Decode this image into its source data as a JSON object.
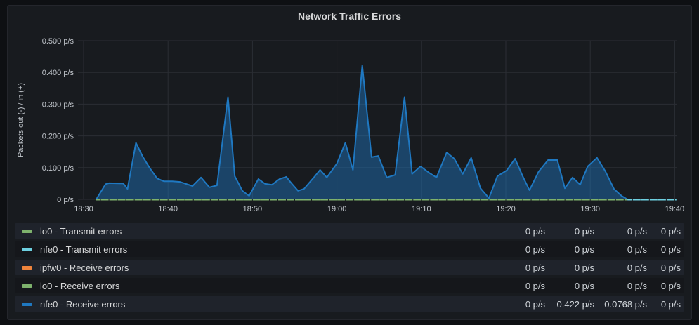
{
  "panel": {
    "title": "Network Traffic Errors"
  },
  "colors": {
    "page_bg": "#0e1013",
    "panel_bg": "#181b1f",
    "grid": "#2b2e34",
    "text": "#d8d9da",
    "tick_text": "#c0c5cb",
    "green": "#7EB26D",
    "cyan": "#6ED0E0",
    "orange": "#EF843C",
    "blue": "#1F78C1"
  },
  "chart_data": {
    "type": "area",
    "title": "Network Traffic Errors",
    "ylabel": "Packets out (-) / in (+)",
    "unit": "p/s",
    "ylim": [
      0,
      0.5
    ],
    "xlim_minutes": [
      0,
      70
    ],
    "grid": true,
    "legend_position": "bottom-table",
    "y_ticks": [
      {
        "label": "0.500 p/s",
        "value": 0.5
      },
      {
        "label": "0.400 p/s",
        "value": 0.4
      },
      {
        "label": "0.300 p/s",
        "value": 0.3
      },
      {
        "label": "0.200 p/s",
        "value": 0.2
      },
      {
        "label": "0.100 p/s",
        "value": 0.1
      },
      {
        "label": "0 p/s",
        "value": 0
      }
    ],
    "x_ticks": [
      {
        "label": "18:30",
        "minute": 0
      },
      {
        "label": "18:40",
        "minute": 10
      },
      {
        "label": "18:50",
        "minute": 20
      },
      {
        "label": "19:00",
        "minute": 30
      },
      {
        "label": "19:10",
        "minute": 40
      },
      {
        "label": "19:20",
        "minute": 50
      },
      {
        "label": "19:30",
        "minute": 60
      },
      {
        "label": "19:40",
        "minute": 70
      }
    ],
    "series": [
      {
        "name": "lo0 - Transmit errors",
        "color": "#7EB26D",
        "style": "line",
        "points": [
          [
            1.5,
            0
          ],
          [
            64.4,
            0
          ]
        ]
      },
      {
        "name": "nfe0 - Transmit errors",
        "color": "#6ED0E0",
        "style": "line",
        "points": [
          [
            64.4,
            0
          ],
          [
            70.2,
            0
          ]
        ]
      },
      {
        "name": "ipfw0 - Receive errors",
        "color": "#EF843C",
        "style": "line",
        "points": []
      },
      {
        "name": "lo0 - Receive errors",
        "color": "#7EB26D",
        "style": "line",
        "points": []
      },
      {
        "name": "nfe0 - Receive errors",
        "color": "#1F78C1",
        "style": "area",
        "fill_opacity": 0.45,
        "points": [
          [
            1.5,
            0
          ],
          [
            2.6,
            0.048
          ],
          [
            3.0,
            0.051
          ],
          [
            4.7,
            0.05
          ],
          [
            5.2,
            0.033
          ],
          [
            6.2,
            0.178
          ],
          [
            7.0,
            0.135
          ],
          [
            7.8,
            0.1
          ],
          [
            8.7,
            0.066
          ],
          [
            9.5,
            0.057
          ],
          [
            10.5,
            0.057
          ],
          [
            11.4,
            0.055
          ],
          [
            12.9,
            0.042
          ],
          [
            13.9,
            0.069
          ],
          [
            14.9,
            0.038
          ],
          [
            15.8,
            0.044
          ],
          [
            17.1,
            0.322
          ],
          [
            17.9,
            0.073
          ],
          [
            18.8,
            0.027
          ],
          [
            19.6,
            0.011
          ],
          [
            20.7,
            0.064
          ],
          [
            21.5,
            0.049
          ],
          [
            22.3,
            0.046
          ],
          [
            23.2,
            0.064
          ],
          [
            24.0,
            0.071
          ],
          [
            24.6,
            0.051
          ],
          [
            25.4,
            0.027
          ],
          [
            26.1,
            0.033
          ],
          [
            27.4,
            0.073
          ],
          [
            28.0,
            0.093
          ],
          [
            28.8,
            0.069
          ],
          [
            30.0,
            0.113
          ],
          [
            31.0,
            0.178
          ],
          [
            31.9,
            0.093
          ],
          [
            33.0,
            0.422
          ],
          [
            34.1,
            0.133
          ],
          [
            34.9,
            0.137
          ],
          [
            35.9,
            0.069
          ],
          [
            36.9,
            0.077
          ],
          [
            38.0,
            0.322
          ],
          [
            38.9,
            0.08
          ],
          [
            39.9,
            0.104
          ],
          [
            40.9,
            0.084
          ],
          [
            41.8,
            0.069
          ],
          [
            43.0,
            0.148
          ],
          [
            43.9,
            0.128
          ],
          [
            44.9,
            0.08
          ],
          [
            45.9,
            0.131
          ],
          [
            47.0,
            0.035
          ],
          [
            48.0,
            0.004
          ],
          [
            49.0,
            0.073
          ],
          [
            50.1,
            0.091
          ],
          [
            51.1,
            0.128
          ],
          [
            52.0,
            0.073
          ],
          [
            52.8,
            0.029
          ],
          [
            53.9,
            0.088
          ],
          [
            55.0,
            0.124
          ],
          [
            56.1,
            0.124
          ],
          [
            57.0,
            0.035
          ],
          [
            57.9,
            0.069
          ],
          [
            58.8,
            0.046
          ],
          [
            59.7,
            0.104
          ],
          [
            60.8,
            0.131
          ],
          [
            61.8,
            0.088
          ],
          [
            62.8,
            0.033
          ],
          [
            63.7,
            0.011
          ],
          [
            64.4,
            0
          ]
        ]
      }
    ]
  },
  "legend": {
    "rows": [
      {
        "label": "lo0 - Transmit errors",
        "color": "#7EB26D",
        "values": [
          "0 p/s",
          "0 p/s",
          "0 p/s",
          "0 p/s"
        ]
      },
      {
        "label": "nfe0 - Transmit errors",
        "color": "#6ED0E0",
        "values": [
          "0 p/s",
          "0 p/s",
          "0 p/s",
          "0 p/s"
        ]
      },
      {
        "label": "ipfw0 - Receive errors",
        "color": "#EF843C",
        "values": [
          "0 p/s",
          "0 p/s",
          "0 p/s",
          "0 p/s"
        ]
      },
      {
        "label": "lo0 - Receive errors",
        "color": "#7EB26D",
        "values": [
          "0 p/s",
          "0 p/s",
          "0 p/s",
          "0 p/s"
        ]
      },
      {
        "label": "nfe0 - Receive errors",
        "color": "#1F78C1",
        "values": [
          "0 p/s",
          "0.422 p/s",
          "0.0768 p/s",
          "0 p/s"
        ]
      }
    ]
  }
}
